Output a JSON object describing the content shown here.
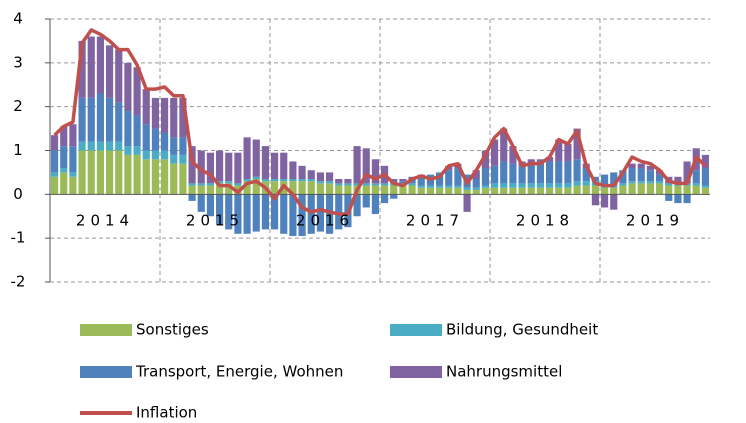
{
  "chart_data": {
    "type": "bar",
    "categories": [
      null,
      null,
      null,
      null,
      null,
      null,
      "2014",
      null,
      null,
      null,
      null,
      null,
      null,
      null,
      null,
      null,
      null,
      null,
      "2015",
      null,
      null,
      null,
      null,
      null,
      null,
      null,
      null,
      null,
      null,
      null,
      "2016",
      null,
      null,
      null,
      null,
      null,
      null,
      null,
      null,
      null,
      null,
      null,
      "2017",
      null,
      null,
      null,
      null,
      null,
      null,
      null,
      null,
      null,
      null,
      null,
      "2018",
      null,
      null,
      null,
      null,
      null,
      null,
      null,
      null,
      null,
      null,
      null,
      "2019",
      null,
      null,
      null,
      null,
      null
    ],
    "series": [
      {
        "name": "Sonstiges",
        "color": "#9bbb59",
        "values": [
          0.4,
          0.5,
          0.4,
          1.0,
          1.0,
          1.0,
          1.0,
          1.0,
          0.9,
          0.9,
          0.8,
          0.8,
          0.8,
          0.7,
          0.7,
          0.2,
          0.2,
          0.2,
          0.25,
          0.25,
          0.2,
          0.3,
          0.35,
          0.3,
          0.3,
          0.3,
          0.3,
          0.3,
          0.3,
          0.25,
          0.25,
          0.2,
          0.2,
          0.2,
          0.2,
          0.2,
          0.2,
          0.2,
          0.2,
          0.2,
          0.15,
          0.15,
          0.15,
          0.15,
          0.15,
          0.1,
          0.1,
          0.15,
          0.15,
          0.15,
          0.15,
          0.15,
          0.15,
          0.15,
          0.15,
          0.15,
          0.15,
          0.2,
          0.2,
          0.2,
          0.15,
          0.15,
          0.2,
          0.25,
          0.25,
          0.25,
          0.25,
          0.2,
          0.2,
          0.2,
          0.2,
          0.15
        ]
      },
      {
        "name": "Bildung, Gesundheit",
        "color": "#4bacc6",
        "values": [
          0.1,
          0.1,
          0.1,
          0.2,
          0.2,
          0.2,
          0.2,
          0.2,
          0.2,
          0.2,
          0.2,
          0.2,
          0.2,
          0.2,
          0.2,
          0.05,
          0.05,
          0.05,
          0.05,
          0.05,
          0.05,
          0.05,
          0.05,
          0.05,
          0.05,
          0.05,
          0.05,
          0.05,
          0.05,
          0.05,
          0.05,
          0.05,
          0.05,
          0.05,
          0.05,
          0.05,
          0.05,
          0.05,
          0.05,
          0.05,
          0.05,
          0.05,
          0.05,
          0.05,
          0.05,
          0.05,
          0.05,
          0.05,
          0.1,
          0.1,
          0.1,
          0.1,
          0.1,
          0.1,
          0.1,
          0.1,
          0.1,
          0.1,
          0.1,
          0.1,
          0.05,
          0.05,
          0.05,
          0.05,
          0.05,
          0.05,
          0.05,
          0.05,
          0.05,
          0.05,
          0.05,
          0.05
        ]
      },
      {
        "name": "Transport, Energie, Wohnen",
        "color": "#4f81bd",
        "values": [
          0.5,
          0.5,
          0.6,
          1.0,
          1.0,
          1.1,
          1.0,
          0.9,
          0.8,
          0.7,
          0.6,
          0.5,
          0.4,
          0.4,
          0.4,
          -0.15,
          -0.4,
          -0.5,
          -0.7,
          -0.8,
          -0.9,
          -0.9,
          -0.85,
          -0.8,
          -0.8,
          -0.9,
          -0.95,
          -0.95,
          -0.9,
          -0.85,
          -0.9,
          -0.8,
          -0.75,
          -0.5,
          -0.3,
          -0.45,
          -0.2,
          -0.1,
          0.05,
          0.1,
          0.2,
          0.25,
          0.3,
          0.35,
          0.4,
          0.3,
          0.2,
          0.4,
          0.4,
          0.5,
          0.45,
          0.4,
          0.45,
          0.45,
          0.5,
          0.5,
          0.5,
          0.5,
          0.3,
          0.1,
          0.25,
          0.3,
          0.3,
          0.3,
          0.3,
          0.25,
          0.15,
          -0.15,
          -0.2,
          -0.2,
          0.3,
          0.4
        ]
      },
      {
        "name": "Nahrungsmittel",
        "color": "#8064a2",
        "values": [
          0.35,
          0.45,
          0.5,
          1.3,
          1.4,
          1.3,
          1.2,
          1.2,
          1.1,
          1.1,
          0.8,
          0.7,
          0.8,
          0.9,
          0.9,
          0.85,
          0.75,
          0.7,
          0.7,
          0.65,
          0.7,
          0.95,
          0.85,
          0.75,
          0.6,
          0.6,
          0.4,
          0.3,
          0.2,
          0.2,
          0.2,
          0.1,
          0.1,
          0.85,
          0.8,
          0.55,
          0.4,
          0.1,
          0.05,
          0.05,
          0.05,
          0.0,
          0.0,
          0.1,
          0.1,
          -0.4,
          0.2,
          0.4,
          0.6,
          0.75,
          0.4,
          0.1,
          0.1,
          0.1,
          0.1,
          0.5,
          0.4,
          0.7,
          0.1,
          -0.25,
          -0.3,
          -0.35,
          0.0,
          0.1,
          0.1,
          0.1,
          0.1,
          0.15,
          0.15,
          0.5,
          0.5,
          0.3
        ]
      },
      {
        "name": "Inflation",
        "color": "#c0504d",
        "type": "line",
        "values": [
          1.35,
          1.55,
          1.65,
          3.45,
          3.75,
          3.65,
          3.5,
          3.3,
          3.3,
          2.95,
          2.4,
          2.4,
          2.45,
          2.25,
          2.25,
          0.75,
          0.55,
          0.45,
          0.2,
          0.2,
          0.05,
          0.25,
          0.3,
          0.15,
          -0.1,
          0.2,
          0.0,
          -0.3,
          -0.4,
          -0.35,
          -0.4,
          -0.45,
          -0.45,
          0.1,
          0.45,
          0.35,
          0.45,
          0.25,
          0.2,
          0.35,
          0.42,
          0.35,
          0.4,
          0.65,
          0.7,
          0.25,
          0.55,
          0.9,
          1.3,
          1.5,
          1.1,
          0.65,
          0.7,
          0.7,
          0.85,
          1.25,
          1.15,
          1.45,
          0.65,
          0.25,
          0.2,
          0.2,
          0.5,
          0.85,
          0.75,
          0.7,
          0.55,
          0.3,
          0.25,
          0.25,
          0.85,
          0.65
        ]
      }
    ],
    "ylim": [
      -2,
      4
    ],
    "yticks": [
      -2,
      -1,
      0,
      1,
      2,
      3,
      4
    ],
    "grid": true
  }
}
